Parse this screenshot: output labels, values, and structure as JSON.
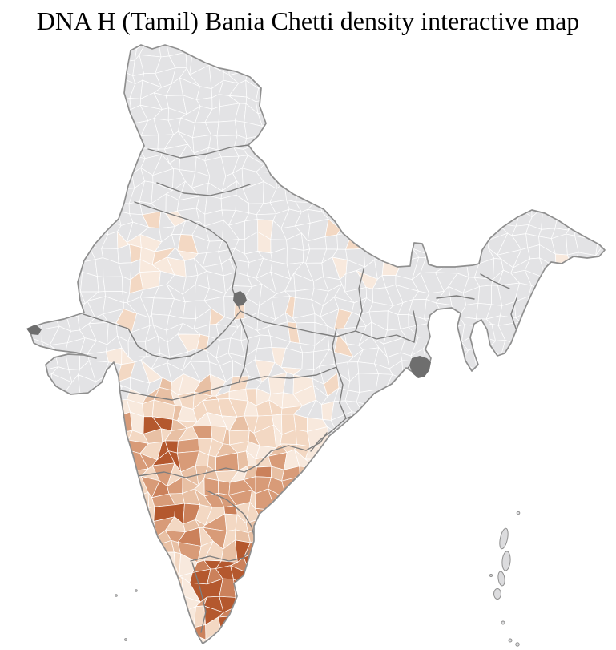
{
  "title": "DNA H (Tamil) Bania Chetti density interactive map",
  "map_data": {
    "type": "choropleth",
    "geography": "India, district-level boundaries with state borders",
    "metric": "DNA H (Tamil) Bania Chetti density",
    "legend_visible": false,
    "palette": {
      "background": "#ffffff",
      "no_data_fill": "#e3e3e5",
      "district_border": "#ffffff",
      "state_border": "#7e7e7e",
      "outer_border": "#8f8f8f",
      "urban_water_patch": "#6e6e6e",
      "island_fill": "#dcdcde",
      "density_scale_low_to_high": [
        "#f8e9dd",
        "#f3d8c3",
        "#e8c0a4",
        "#d89b78",
        "#cb815b",
        "#b4582e"
      ]
    },
    "observed_density_by_region": [
      {
        "region": "Tamil Nadu and Puducherry coast",
        "level": "highest - dark red-brown district cluster"
      },
      {
        "region": "Karnataka",
        "level": "high - medium tan with dark spots"
      },
      {
        "region": "South Andhra Pradesh (Rayalaseema)",
        "level": "high-medium tan"
      },
      {
        "region": "Coastal Andhra Pradesh",
        "level": "medium, one dark coastal district"
      },
      {
        "region": "Telangana and interior Deccan",
        "level": "low - pale peach"
      },
      {
        "region": "Maharashtra",
        "level": "low-medium, dark districts at Pune, Nashik and Mumbai coast"
      },
      {
        "region": "Kerala",
        "level": "low - pale, one dark district at southern tip"
      },
      {
        "region": "Gujarat, Rajasthan, Madhya Pradesh, Uttar Pradesh",
        "level": "sparse scattered pale districts"
      },
      {
        "region": "North, East and Northeast India",
        "level": "no data - gray"
      },
      {
        "region": "Andaman and Nicobar, Lakshadweep islands",
        "level": "no data - gray"
      }
    ]
  }
}
